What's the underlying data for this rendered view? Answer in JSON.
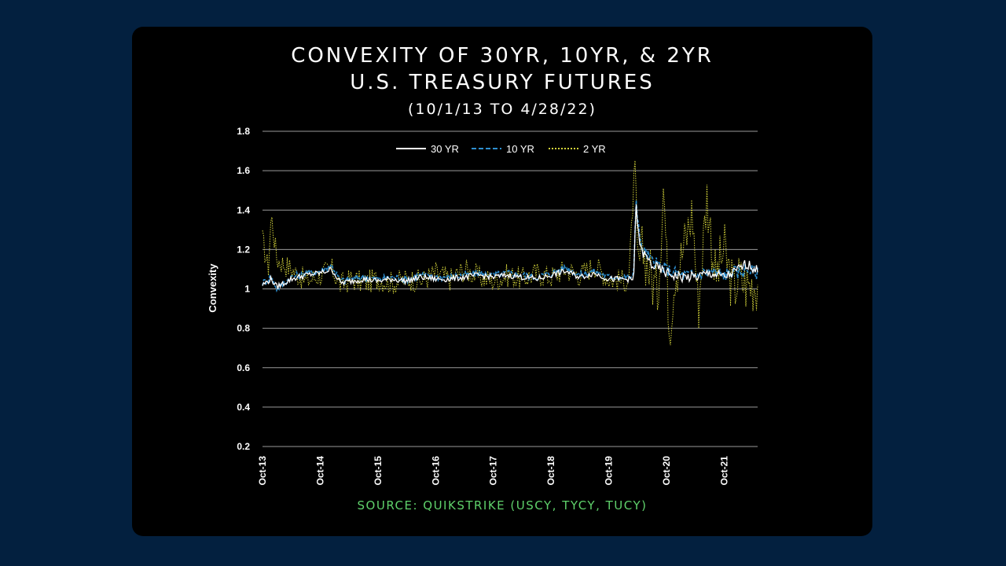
{
  "page": {
    "title_line1": "CONVEXITY OF 30YR, 10YR, & 2YR",
    "title_line2": "U.S. TREASURY FUTURES",
    "subtitle": "(10/1/13 TO 4/28/22)",
    "source": "SOURCE: QUIKSTRIKE (USCY, TYCY, TUCY)"
  },
  "chart_data": {
    "type": "line",
    "title": "CONVEXITY OF 30YR, 10YR, & 2YR U.S. TREASURY FUTURES",
    "subtitle": "(10/1/13 TO 4/28/22)",
    "xlabel": "",
    "ylabel": "Convexity",
    "ylim": [
      0.2,
      1.8
    ],
    "yticks": [
      0.2,
      0.4,
      0.6,
      0.8,
      1,
      1.2,
      1.4,
      1.6,
      1.8
    ],
    "ytick_labels": [
      "0.2",
      "0.4",
      "0.6",
      "0.8",
      "1",
      "1.2",
      "1.4",
      "1.6",
      "1.8"
    ],
    "xlim": [
      2013.75,
      2022.33
    ],
    "xticks": [
      2013.75,
      2014.75,
      2015.75,
      2016.75,
      2017.75,
      2018.75,
      2019.75,
      2020.75,
      2021.75
    ],
    "xtick_labels": [
      "Oct-13",
      "Oct-14",
      "Oct-15",
      "Oct-16",
      "Oct-17",
      "Oct-18",
      "Oct-19",
      "Oct-20",
      "Oct-21"
    ],
    "grid": "horizontal",
    "legend_position": "top-center",
    "colors": {
      "30 YR": "#ffffff",
      "10 YR": "#2e8fd0",
      "2 YR": "#d4d43a"
    },
    "series": [
      {
        "name": "30 YR",
        "style": "solid",
        "x": [
          2013.75,
          2013.9,
          2014.0,
          2014.25,
          2014.5,
          2014.75,
          2014.95,
          2015.1,
          2015.3,
          2015.5,
          2015.75,
          2016.0,
          2016.25,
          2016.5,
          2016.75,
          2017.0,
          2017.25,
          2017.5,
          2017.75,
          2018.0,
          2018.25,
          2018.5,
          2018.75,
          2019.0,
          2019.25,
          2019.5,
          2019.75,
          2020.0,
          2020.1,
          2020.18,
          2020.22,
          2020.3,
          2020.4,
          2020.5,
          2020.75,
          2021.0,
          2021.25,
          2021.5,
          2021.75,
          2021.9,
          2022.0,
          2022.15,
          2022.33
        ],
        "values": [
          1.02,
          1.05,
          1.01,
          1.05,
          1.07,
          1.08,
          1.1,
          1.03,
          1.04,
          1.05,
          1.04,
          1.05,
          1.04,
          1.06,
          1.05,
          1.05,
          1.06,
          1.07,
          1.06,
          1.07,
          1.06,
          1.05,
          1.07,
          1.09,
          1.06,
          1.08,
          1.05,
          1.05,
          1.05,
          1.04,
          1.42,
          1.2,
          1.16,
          1.12,
          1.08,
          1.06,
          1.06,
          1.08,
          1.06,
          1.08,
          1.1,
          1.13,
          1.09
        ]
      },
      {
        "name": "10 YR",
        "style": "dashed",
        "x": [
          2013.75,
          2013.9,
          2014.0,
          2014.25,
          2014.5,
          2014.75,
          2014.95,
          2015.1,
          2015.3,
          2015.5,
          2015.75,
          2016.0,
          2016.25,
          2016.5,
          2016.75,
          2017.0,
          2017.25,
          2017.5,
          2017.75,
          2018.0,
          2018.25,
          2018.5,
          2018.75,
          2019.0,
          2019.25,
          2019.5,
          2019.75,
          2020.0,
          2020.1,
          2020.18,
          2020.22,
          2020.3,
          2020.4,
          2020.5,
          2020.75,
          2021.0,
          2021.25,
          2021.5,
          2021.75,
          2021.9,
          2022.0,
          2022.15,
          2022.33
        ],
        "values": [
          1.03,
          1.06,
          1.0,
          1.06,
          1.08,
          1.09,
          1.12,
          1.04,
          1.05,
          1.06,
          1.05,
          1.06,
          1.05,
          1.07,
          1.06,
          1.06,
          1.07,
          1.08,
          1.07,
          1.08,
          1.07,
          1.06,
          1.08,
          1.11,
          1.07,
          1.09,
          1.06,
          1.06,
          1.06,
          1.05,
          1.47,
          1.22,
          1.18,
          1.14,
          1.1,
          1.07,
          1.07,
          1.09,
          1.07,
          1.09,
          1.08,
          1.1,
          1.08
        ]
      },
      {
        "name": "2 YR",
        "style": "dotted",
        "x": [
          2013.75,
          2013.85,
          2013.9,
          2014.0,
          2014.25,
          2014.5,
          2014.75,
          2014.95,
          2015.1,
          2015.3,
          2015.5,
          2015.75,
          2016.0,
          2016.25,
          2016.5,
          2016.75,
          2017.0,
          2017.25,
          2017.5,
          2017.75,
          2018.0,
          2018.25,
          2018.5,
          2018.75,
          2019.0,
          2019.25,
          2019.5,
          2019.75,
          2020.0,
          2020.1,
          2020.2,
          2020.25,
          2020.35,
          2020.5,
          2020.6,
          2020.7,
          2020.8,
          2020.9,
          2021.0,
          2021.2,
          2021.3,
          2021.45,
          2021.6,
          2021.75,
          2021.9,
          2022.0,
          2022.15,
          2022.33
        ],
        "values": [
          1.25,
          1.1,
          1.38,
          1.15,
          1.1,
          1.04,
          1.07,
          1.1,
          1.02,
          1.05,
          1.03,
          1.05,
          1.03,
          1.05,
          1.04,
          1.08,
          1.05,
          1.1,
          1.06,
          1.04,
          1.07,
          1.05,
          1.08,
          1.06,
          1.1,
          1.07,
          1.12,
          1.05,
          1.04,
          1.05,
          1.62,
          1.1,
          1.2,
          1.05,
          0.98,
          1.55,
          0.8,
          1.1,
          1.15,
          1.4,
          0.9,
          1.48,
          1.05,
          1.2,
          1.0,
          1.05,
          1.02,
          1.03
        ]
      }
    ]
  }
}
